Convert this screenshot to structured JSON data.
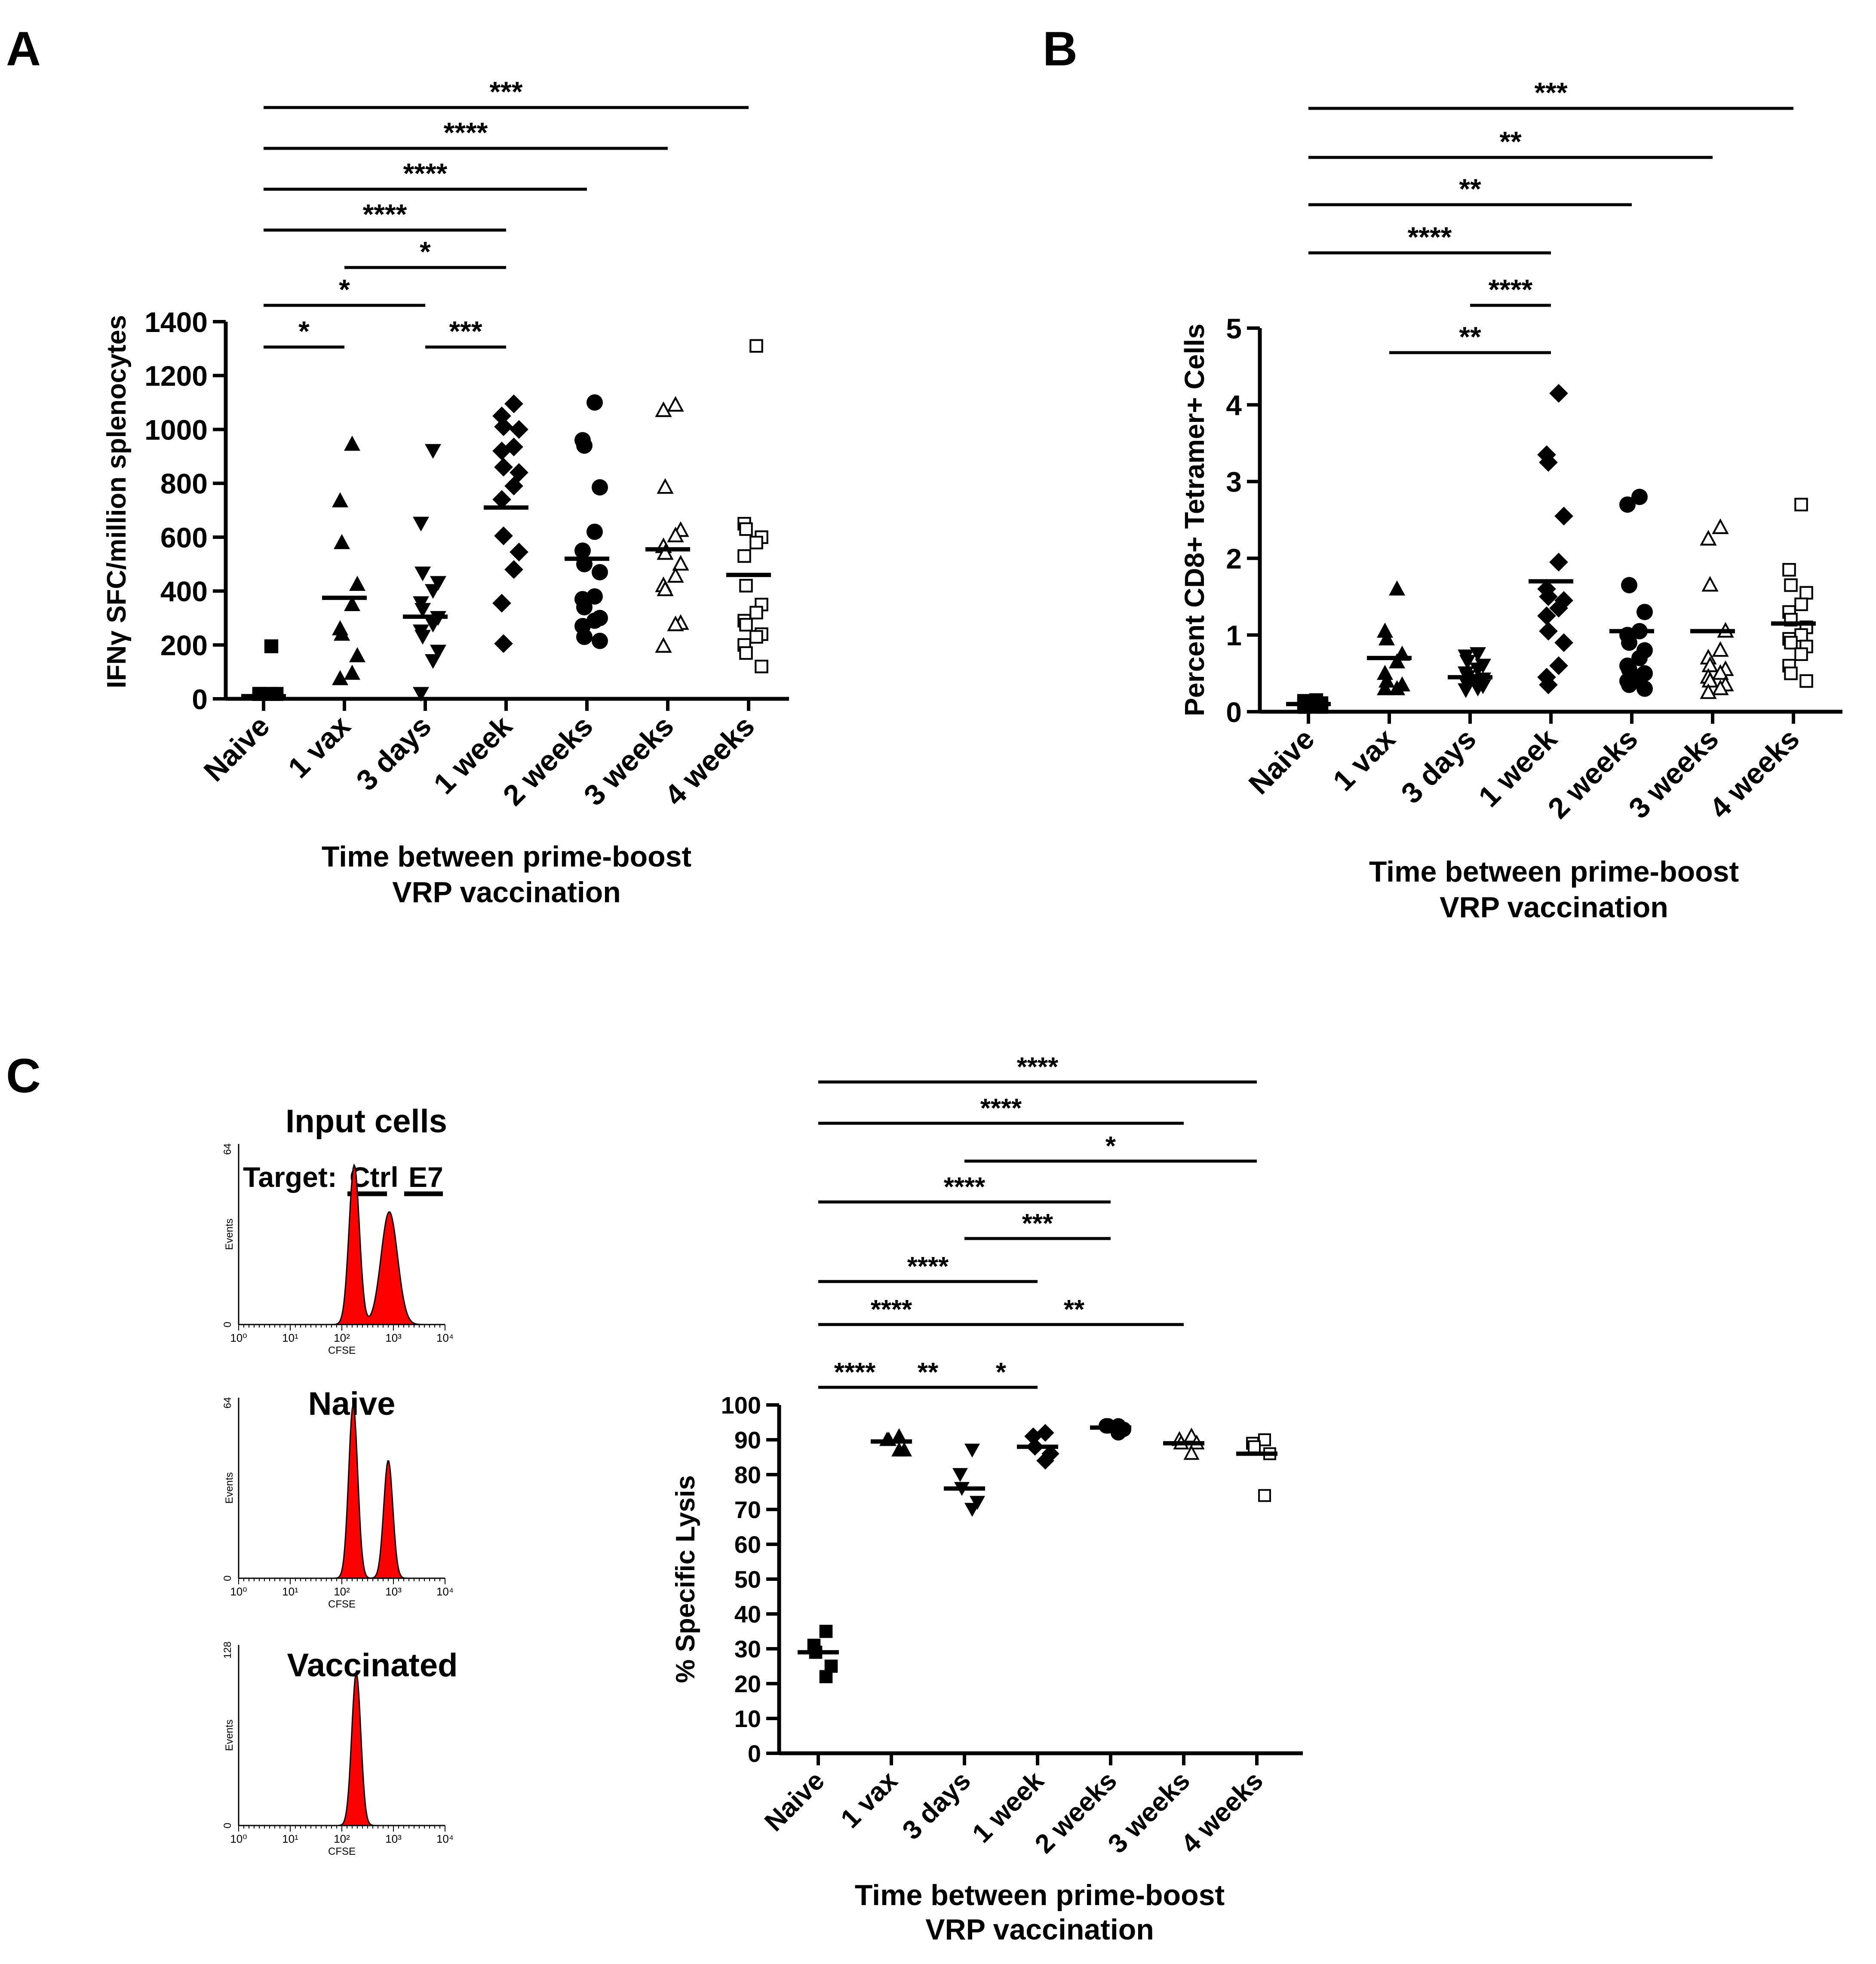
{
  "panel_labels": [
    "A",
    "B",
    "C"
  ],
  "shared": {
    "categories": [
      "Naive",
      "1 vax",
      "3 days",
      "1 week",
      "2 weeks",
      "3 weeks",
      "4 weeks"
    ],
    "xlabel_line1": "Time between prime-boost",
    "xlabel_line2": "VRP vaccination"
  },
  "histograms": {
    "title_input": "Input cells",
    "target_text": "Target:",
    "ctrl_text": "Ctrl",
    "e7_text": "E7",
    "title_naive": "Naive",
    "title_vaccinated": "Vaccinated",
    "xaxis_label": "CFSE",
    "yaxis_label": "Events",
    "tick_labels": [
      "10⁰",
      "10¹",
      "10²",
      "10³",
      "10⁴"
    ],
    "ymax_labels": [
      "64",
      "64",
      "128"
    ],
    "fill_color": "#ff0000"
  },
  "chart_data": [
    {
      "panel": "A",
      "type": "scatter",
      "ylabel": "IFNγ SFC/million splenocytes",
      "ylim": [
        0,
        1400
      ],
      "yticks": [
        0,
        200,
        400,
        600,
        800,
        1000,
        1200,
        1400
      ],
      "markers": [
        "square-filled",
        "triangle-up-filled",
        "triangle-down-filled",
        "diamond-filled",
        "circle-filled",
        "triangle-up-open",
        "square-open"
      ],
      "groups": [
        {
          "name": "Naive",
          "mean": 10,
          "values": [
            195,
            18,
            12,
            10,
            8,
            6,
            5,
            4,
            3,
            2,
            2,
            1
          ]
        },
        {
          "name": "1 vax",
          "mean": 375,
          "values": [
            945,
            735,
            580,
            425,
            350,
            260,
            240,
            160,
            95,
            75
          ]
        },
        {
          "name": "3 days",
          "mean": 305,
          "values": [
            920,
            650,
            465,
            430,
            400,
            355,
            330,
            300,
            275,
            250,
            230,
            175,
            140,
            10
          ]
        },
        {
          "name": "1 week",
          "mean": 710,
          "values": [
            1095,
            1050,
            1010,
            1000,
            935,
            920,
            860,
            840,
            790,
            740,
            605,
            545,
            480,
            355,
            205
          ]
        },
        {
          "name": "2 weeks",
          "mean": 520,
          "values": [
            1100,
            960,
            940,
            785,
            620,
            550,
            500,
            470,
            380,
            370,
            340,
            300,
            290,
            270,
            230,
            215
          ]
        },
        {
          "name": "3 weeks",
          "mean": 555,
          "values": [
            1090,
            1070,
            785,
            625,
            605,
            565,
            540,
            500,
            455,
            420,
            405,
            280,
            275,
            195
          ]
        },
        {
          "name": "4 weeks",
          "mean": 460,
          "values": [
            1310,
            650,
            630,
            600,
            580,
            530,
            420,
            350,
            320,
            290,
            275,
            240,
            230,
            200,
            170,
            120
          ]
        }
      ],
      "significance": [
        {
          "from": "Naive",
          "to": "1 vax",
          "stars": "*"
        },
        {
          "from": "3 days",
          "to": "1 week",
          "stars": "***"
        },
        {
          "from": "Naive",
          "to": "3 days",
          "stars": "*"
        },
        {
          "from": "1 vax",
          "to": "1 week",
          "stars": "*"
        },
        {
          "from": "Naive",
          "to": "1 week",
          "stars": "****"
        },
        {
          "from": "Naive",
          "to": "2 weeks",
          "stars": "****"
        },
        {
          "from": "Naive",
          "to": "3 weeks",
          "stars": "****"
        },
        {
          "from": "Naive",
          "to": "4 weeks",
          "stars": "***"
        }
      ]
    },
    {
      "panel": "B",
      "type": "scatter",
      "ylabel": "Percent CD8+ Tetramer+ Cells",
      "ylim": [
        0,
        5
      ],
      "yticks": [
        0,
        1,
        2,
        3,
        4,
        5
      ],
      "markers": [
        "square-filled",
        "triangle-up-filled",
        "triangle-down-filled",
        "diamond-filled",
        "circle-filled",
        "triangle-up-open",
        "square-open"
      ],
      "groups": [
        {
          "name": "Naive",
          "mean": 0.1,
          "values": [
            0.15,
            0.14,
            0.12,
            0.11,
            0.1,
            0.09,
            0.08,
            0.08,
            0.07,
            0.06,
            0.06,
            0.05
          ]
        },
        {
          "name": "1 vax",
          "mean": 0.7,
          "values": [
            1.6,
            1.05,
            0.95,
            0.75,
            0.65,
            0.5,
            0.4,
            0.35,
            0.3,
            0.3
          ]
        },
        {
          "name": "3 days",
          "mean": 0.45,
          "values": [
            0.75,
            0.72,
            0.65,
            0.6,
            0.55,
            0.5,
            0.45,
            0.42,
            0.4,
            0.38,
            0.35,
            0.33,
            0.3,
            0.28
          ]
        },
        {
          "name": "1 week",
          "mean": 1.7,
          "values": [
            4.15,
            3.35,
            3.25,
            2.55,
            1.95,
            1.6,
            1.5,
            1.45,
            1.35,
            1.25,
            1.05,
            0.9,
            0.6,
            0.45,
            0.35
          ]
        },
        {
          "name": "2 weeks",
          "mean": 1.05,
          "values": [
            2.8,
            2.7,
            1.65,
            1.3,
            1.05,
            1.0,
            0.9,
            0.8,
            0.7,
            0.6,
            0.55,
            0.5,
            0.45,
            0.4,
            0.35,
            0.3
          ]
        },
        {
          "name": "3 weeks",
          "mean": 1.05,
          "values": [
            2.4,
            2.25,
            1.65,
            1.05,
            0.8,
            0.7,
            0.6,
            0.55,
            0.5,
            0.45,
            0.4,
            0.35,
            0.3,
            0.25
          ]
        },
        {
          "name": "4 weeks",
          "mean": 1.15,
          "values": [
            2.7,
            1.85,
            1.65,
            1.55,
            1.4,
            1.3,
            1.2,
            1.1,
            1.0,
            0.95,
            0.9,
            0.85,
            0.75,
            0.6,
            0.5,
            0.4
          ]
        }
      ],
      "significance": [
        {
          "from": "1 vax",
          "to": "1 week",
          "stars": "**"
        },
        {
          "from": "3 days",
          "to": "1 week",
          "stars": "****"
        },
        {
          "from": "Naive",
          "to": "1 week",
          "stars": "****"
        },
        {
          "from": "Naive",
          "to": "2 weeks",
          "stars": "**"
        },
        {
          "from": "Naive",
          "to": "3 weeks",
          "stars": "**"
        },
        {
          "from": "Naive",
          "to": "4 weeks",
          "stars": "***"
        }
      ]
    },
    {
      "panel": "C",
      "type": "scatter",
      "ylabel": "% Specific Lysis",
      "ylim": [
        0,
        100
      ],
      "yticks": [
        0,
        10,
        20,
        30,
        40,
        50,
        60,
        70,
        80,
        90,
        100
      ],
      "markers": [
        "square-filled",
        "triangle-up-filled",
        "triangle-down-filled",
        "diamond-filled",
        "circle-filled",
        "triangle-up-open",
        "square-open"
      ],
      "groups": [
        {
          "name": "Naive",
          "mean": 29,
          "values": [
            35,
            31,
            29,
            25,
            22
          ]
        },
        {
          "name": "1 vax",
          "mean": 89.5,
          "values": [
            91,
            90,
            90,
            87,
            87
          ]
        },
        {
          "name": "3 days",
          "mean": 76,
          "values": [
            87,
            80,
            76,
            72,
            70
          ]
        },
        {
          "name": "1 week",
          "mean": 88,
          "values": [
            92,
            91,
            88,
            86,
            84
          ]
        },
        {
          "name": "2 weeks",
          "mean": 93.5,
          "values": [
            94,
            94,
            94,
            93,
            92
          ]
        },
        {
          "name": "3 weeks",
          "mean": 89,
          "values": [
            91,
            90,
            89,
            89,
            86
          ]
        },
        {
          "name": "4 weeks",
          "mean": 86,
          "values": [
            90,
            89,
            88,
            86,
            74
          ]
        }
      ],
      "significance": [
        {
          "from": "Naive",
          "to": "1 vax",
          "stars": "****"
        },
        {
          "from": "1 vax",
          "to": "3 days",
          "stars": "**"
        },
        {
          "from": "3 days",
          "to": "1 week",
          "stars": "*"
        },
        {
          "from": "Naive",
          "to": "3 days",
          "stars": "****"
        },
        {
          "from": "3 days",
          "to": "3 weeks",
          "stars": "**"
        },
        {
          "from": "Naive",
          "to": "1 week",
          "stars": "****"
        },
        {
          "from": "3 days",
          "to": "2 weeks",
          "stars": "***"
        },
        {
          "from": "Naive",
          "to": "2 weeks",
          "stars": "****"
        },
        {
          "from": "3 days",
          "to": "4 weeks",
          "stars": "*"
        },
        {
          "from": "Naive",
          "to": "3 weeks",
          "stars": "****"
        },
        {
          "from": "Naive",
          "to": "4 weeks",
          "stars": "****"
        }
      ]
    }
  ]
}
